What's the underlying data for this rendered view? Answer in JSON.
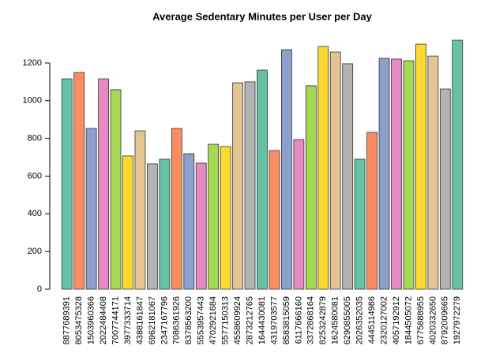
{
  "chart_data": {
    "type": "bar",
    "title": "Average Sedentary Minutes per User per Day",
    "categories": [
      "8877689391",
      "8053475328",
      "1503960366",
      "2022484408",
      "7007744171",
      "3977333714",
      "4388161847",
      "6962181067",
      "2347167796",
      "7086361926",
      "8378563200",
      "5553957443",
      "4702921684",
      "5577150313",
      "4558609924",
      "2873212765",
      "1644430081",
      "4319703577",
      "8583815059",
      "6117666160",
      "3372868164",
      "8253242879",
      "1624580081",
      "6290855005",
      "2026352035",
      "4445114986",
      "2320127002",
      "4057192912",
      "1844505072",
      "6775888955",
      "4020332650",
      "8792009665",
      "1927972279"
    ],
    "values": [
      1116,
      1150,
      853,
      1116,
      1058,
      707,
      840,
      665,
      690,
      853,
      719,
      669,
      769,
      757,
      1095,
      1100,
      1162,
      736,
      1271,
      794,
      1079,
      1288,
      1258,
      1196,
      690,
      832,
      1225,
      1221,
      1212,
      1300,
      1237,
      1062,
      1321
    ],
    "colors": [
      "#66C2A5",
      "#FC8D62",
      "#8DA0CB",
      "#E78AC3",
      "#A6D854",
      "#FFD92F",
      "#E5C494",
      "#B3B3B3"
    ],
    "ylim": [
      0,
      1321
    ],
    "yticks": [
      0,
      200,
      400,
      600,
      800,
      1000,
      1200
    ],
    "grid": false
  }
}
